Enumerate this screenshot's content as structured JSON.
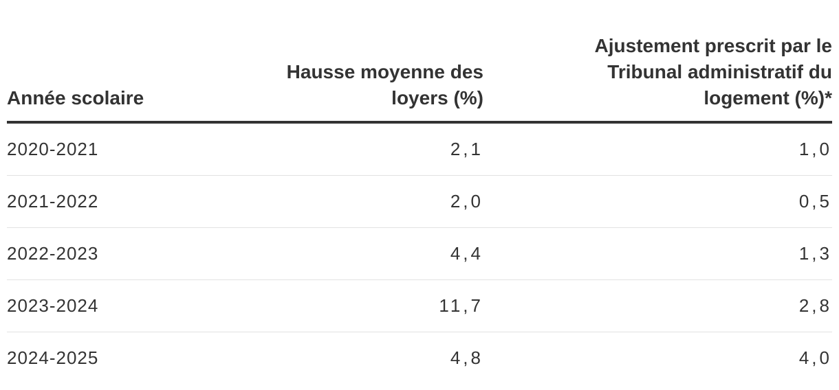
{
  "table": {
    "headers": [
      [
        "Année scolaire"
      ],
      [
        "Hausse moyenne des",
        "loyers (%)"
      ],
      [
        "Ajustement prescrit par le",
        "Tribunal administratif du",
        "logement (%)*"
      ]
    ],
    "rows": [
      [
        "2020-2021",
        "2,1",
        "1,0"
      ],
      [
        "2021-2022",
        "2,0",
        "0,5"
      ],
      [
        "2022-2023",
        "4,4",
        "1,3"
      ],
      [
        "2023-2024",
        "11,7",
        "2,8"
      ],
      [
        "2024-2025",
        "4,8",
        "4,0"
      ]
    ]
  }
}
